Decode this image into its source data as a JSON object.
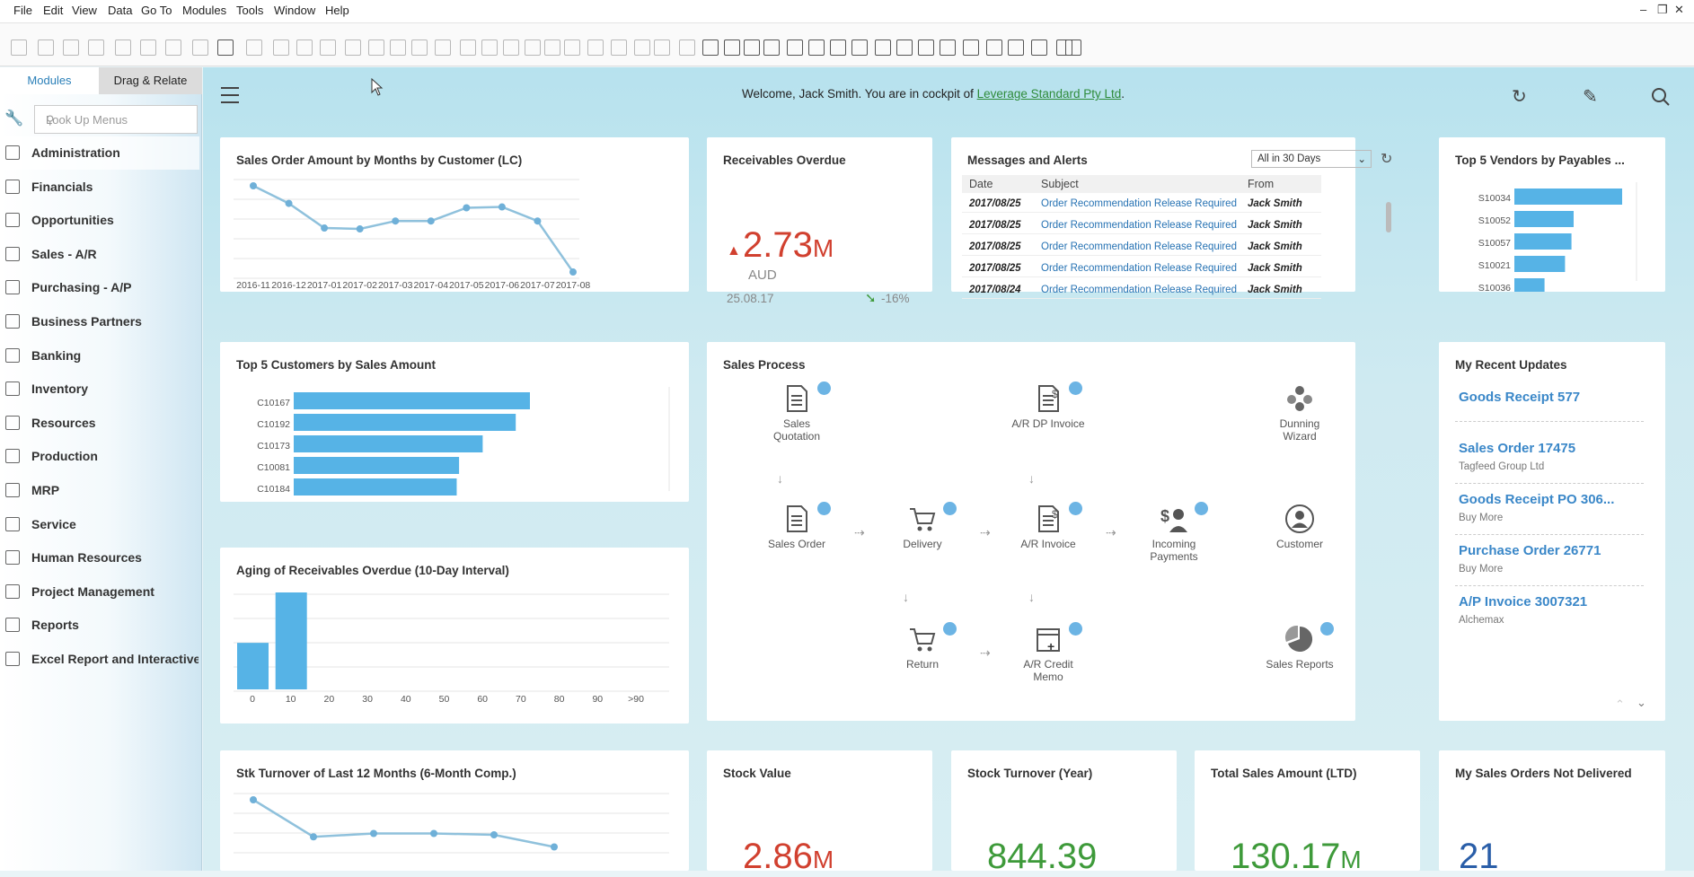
{
  "menu": [
    "File",
    "Edit",
    "View",
    "Data",
    "Go To",
    "Modules",
    "Tools",
    "Window",
    "Help"
  ],
  "window_controls": [
    "–",
    "❐",
    "✕"
  ],
  "sidebar": {
    "tabs": [
      "Modules",
      "Drag & Relate"
    ],
    "lookup_placeholder": "Look Up Menus",
    "items": [
      "Administration",
      "Financials",
      "Opportunities",
      "Sales - A/R",
      "Purchasing - A/P",
      "Business Partners",
      "Banking",
      "Inventory",
      "Resources",
      "Production",
      "MRP",
      "Service",
      "Human Resources",
      "Project Management",
      "Reports",
      "Excel Report and Interactive"
    ]
  },
  "welcome": {
    "prefix": "Welcome, Jack Smith. You are in cockpit of ",
    "company": "Leverage Standard Pty Ltd",
    "suffix": "."
  },
  "cards": {
    "sales_order_amount": {
      "title": "Sales Order Amount by Months by Customer (LC)",
      "chart_data": {
        "type": "line",
        "categories": [
          "2016-11",
          "2016-12",
          "2017-01",
          "2017-02",
          "2017-03",
          "2017-04",
          "2017-05",
          "2017-06",
          "2017-07",
          "2017-08"
        ],
        "values": [
          100,
          80,
          52,
          51,
          60,
          60,
          75,
          76,
          60,
          2
        ],
        "ylim": [
          0,
          110
        ],
        "grid": true
      }
    },
    "receivables_overdue": {
      "title": "Receivables Overdue",
      "value": "2.73",
      "unit": "M",
      "currency": "AUD",
      "date": "25.08.17",
      "change": "-16%"
    },
    "messages": {
      "title": "Messages and Alerts",
      "filter": "All in 30 Days",
      "columns": [
        "Date",
        "Subject",
        "From"
      ],
      "rows": [
        [
          "2017/08/25",
          "Order Recommendation Release Required",
          "Jack Smith"
        ],
        [
          "2017/08/25",
          "Order Recommendation Release Required",
          "Jack Smith"
        ],
        [
          "2017/08/25",
          "Order Recommendation Release Required",
          "Jack Smith"
        ],
        [
          "2017/08/25",
          "Order Recommendation Release Required",
          "Jack Smith"
        ],
        [
          "2017/08/24",
          "Order Recommendation Release Required",
          "Jack Smith"
        ]
      ]
    },
    "top_vendors": {
      "title": "Top 5 Vendors by Payables ...",
      "chart_data": {
        "type": "bar",
        "orientation": "horizontal",
        "categories": [
          "S10034",
          "S10052",
          "S10057",
          "S10021",
          "S10036"
        ],
        "values": [
          100,
          55,
          53,
          47,
          28
        ],
        "xlim": [
          0,
          110
        ]
      }
    },
    "top_customers": {
      "title": "Top 5 Customers by Sales Amount",
      "chart_data": {
        "type": "bar",
        "orientation": "horizontal",
        "categories": [
          "C10167",
          "C10192",
          "C10173",
          "C10081",
          "C10184"
        ],
        "values": [
          100,
          94,
          80,
          70,
          69
        ],
        "xlim": [
          0,
          154
        ]
      }
    },
    "sales_process": {
      "title": "Sales Process",
      "nodes": [
        "Sales Quotation",
        "A/R DP Invoice",
        "Dunning Wizard",
        "Sales Order",
        "Delivery",
        "A/R Invoice",
        "Incoming Payments",
        "Customer",
        "Return",
        "A/R Credit Memo",
        "Sales Reports"
      ]
    },
    "recent_updates": {
      "title": "My Recent Updates",
      "items": [
        {
          "title": "Goods Receipt 577",
          "sub": ""
        },
        {
          "title": "Sales Order 17475",
          "sub": "Tagfeed Group Ltd"
        },
        {
          "title": "Goods Receipt PO 306...",
          "sub": "Buy More"
        },
        {
          "title": "Purchase Order 26771",
          "sub": "Buy More"
        },
        {
          "title": "A/P Invoice 3007321",
          "sub": "Alchemax"
        }
      ]
    },
    "aging": {
      "title": "Aging of Receivables Overdue (10-Day Interval)",
      "chart_data": {
        "type": "bar",
        "categories": [
          "0",
          "10",
          "20",
          "30",
          "40",
          "50",
          "60",
          "70",
          "80",
          "90",
          ">90"
        ],
        "values": [
          48,
          100,
          0,
          0,
          0,
          0,
          0,
          0,
          0,
          0,
          0
        ],
        "ylim": [
          0,
          100
        ],
        "grid": true
      }
    },
    "stock_turnover_12": {
      "title": "Stk Turnover of Last 12 Months (6-Month Comp.)",
      "chart_data": {
        "type": "line",
        "x": [
          1,
          2,
          3,
          4,
          5,
          6
        ],
        "values": [
          100,
          45,
          50,
          50,
          48,
          30
        ]
      }
    },
    "stock_value": {
      "title": "Stock Value",
      "value": "2.86",
      "unit": "M"
    },
    "stock_turnover_year": {
      "title": "Stock Turnover (Year)",
      "value": "844.39"
    },
    "total_sales": {
      "title": "Total Sales Amount (LTD)",
      "value": "130.17",
      "unit": "M"
    },
    "sales_orders_nd": {
      "title": "My Sales Orders Not Delivered",
      "value": "21"
    }
  },
  "colors": {
    "bar": "#56b3e6",
    "line": "#8fc1dc",
    "red": "#d1402f",
    "green": "#3e9a3a",
    "link": "#2672b3"
  }
}
